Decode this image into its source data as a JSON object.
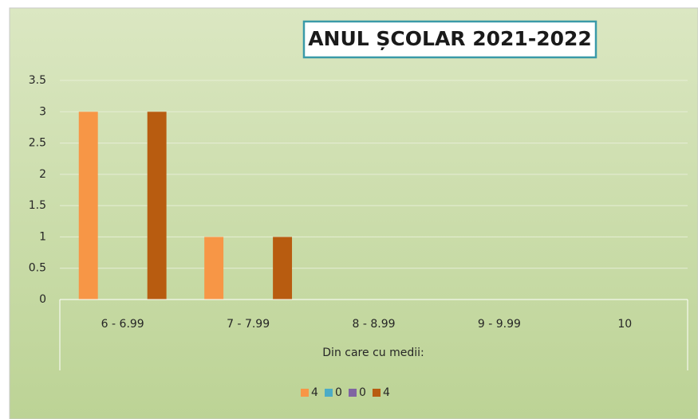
{
  "chart_data": {
    "type": "bar",
    "title": "ANUL ȘCOLAR 2021-2022",
    "x_label": "Din care cu medii:",
    "categories": [
      "6 - 6.99",
      "7 - 7.99",
      "8 - 8.99",
      "9 - 9.99",
      "10"
    ],
    "series": [
      {
        "name": "4",
        "color": "#f79646",
        "values": [
          3,
          1,
          0,
          0,
          0
        ]
      },
      {
        "name": "0",
        "color": "#4bacc6",
        "values": [
          0,
          0,
          0,
          0,
          0
        ]
      },
      {
        "name": "0",
        "color": "#8064a2",
        "values": [
          0,
          0,
          0,
          0,
          0
        ]
      },
      {
        "name": "4",
        "color": "#b85c10",
        "values": [
          3,
          1,
          0,
          0,
          0
        ]
      }
    ],
    "ylim": [
      0,
      3.5
    ],
    "yticks": [
      0,
      0.5,
      1,
      1.5,
      2,
      2.5,
      3,
      3.5
    ],
    "grid": true,
    "legend": "bottom"
  }
}
